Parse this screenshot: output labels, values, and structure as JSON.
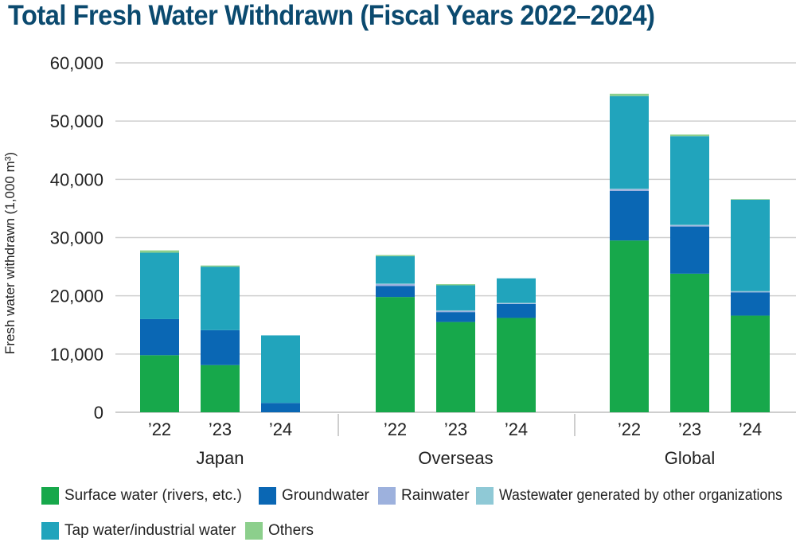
{
  "title": "Total Fresh Water Withdrawn (Fiscal Years 2022–2024)",
  "chart_data": {
    "type": "bar",
    "stacked": true,
    "ylabel": "Fresh water withdrawn (1,000 m³)",
    "ylim": [
      0,
      60000
    ],
    "yticks": [
      "0",
      "10,000",
      "20,000",
      "30,000",
      "40,000",
      "50,000",
      "60,000"
    ],
    "grid": true,
    "groups": [
      {
        "name": "Japan",
        "years": [
          "’22",
          "’23",
          "’24"
        ]
      },
      {
        "name": "Overseas",
        "years": [
          "’22",
          "’23",
          "’24"
        ]
      },
      {
        "name": "Global",
        "years": [
          "’22",
          "’23",
          "’24"
        ]
      }
    ],
    "series": [
      {
        "name": "Surface water (rivers, etc.)",
        "color": "#17a84b",
        "values": [
          9800,
          8100,
          0,
          19800,
          15500,
          16200,
          29500,
          23800,
          16600
        ]
      },
      {
        "name": "Groundwater",
        "color": "#0a67b4",
        "values": [
          6200,
          6000,
          1600,
          1900,
          1700,
          2400,
          8500,
          8100,
          4000
        ]
      },
      {
        "name": "Rainwater",
        "color": "#9db1dd",
        "values": [
          0,
          0,
          0,
          300,
          200,
          100,
          300,
          200,
          100
        ]
      },
      {
        "name": "Wastewater generated by other organizations",
        "color": "#8fc9d6",
        "values": [
          0,
          0,
          0,
          100,
          100,
          100,
          100,
          100,
          100
        ]
      },
      {
        "name": "Tap water/industrial water",
        "color": "#21a4bc",
        "values": [
          11400,
          10900,
          11600,
          4700,
          4300,
          4200,
          15900,
          15200,
          15700
        ]
      },
      {
        "name": "Others",
        "color": "#8ccf8c",
        "values": [
          400,
          200,
          0,
          200,
          200,
          0,
          400,
          300,
          100
        ]
      }
    ]
  }
}
